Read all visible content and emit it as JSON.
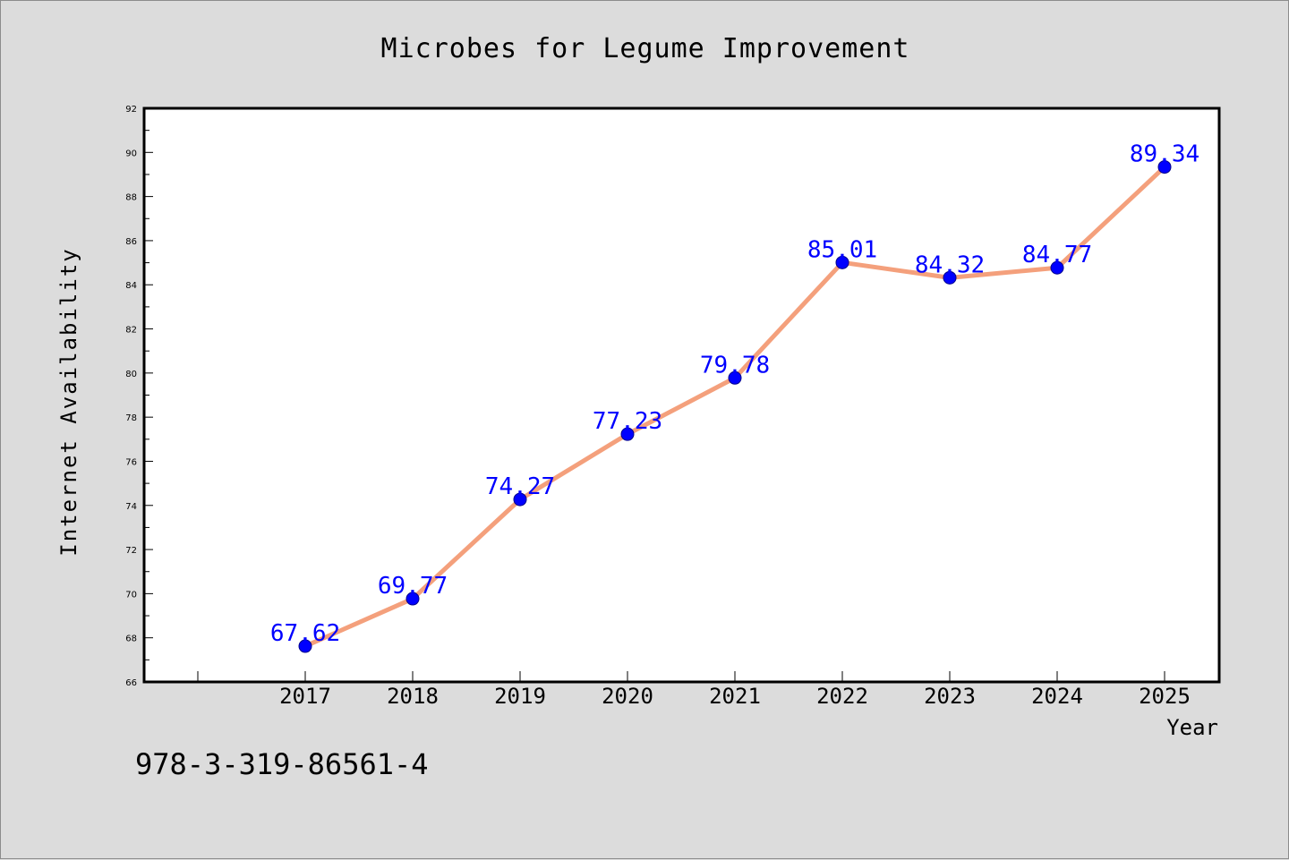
{
  "chart_data": {
    "type": "line",
    "title": "Microbes for Legume Improvement",
    "xlabel": "Year",
    "ylabel": "Internet Availability",
    "categories": [
      "2017",
      "2018",
      "2019",
      "2020",
      "2021",
      "2022",
      "2023",
      "2024",
      "2025"
    ],
    "series": [
      {
        "values": [
          67.62,
          69.77,
          74.27,
          77.23,
          79.78,
          85.01,
          84.32,
          84.77,
          89.34
        ],
        "data_labels": [
          "67.62",
          "69.77",
          "74.27",
          "77.23",
          "79.78",
          "85.01",
          "84.32",
          "84.77",
          "89.34"
        ],
        "line_color": "#f4a07c",
        "marker_color": "#0000ff"
      }
    ],
    "ylim": [
      66,
      92
    ],
    "yticks": [
      "66",
      "68",
      "70",
      "72",
      "74",
      "76",
      "78",
      "80",
      "82",
      "84",
      "86",
      "88",
      "90",
      "92"
    ],
    "grid": false,
    "legend": "none"
  },
  "annotation": "978-3-319-86561-4"
}
